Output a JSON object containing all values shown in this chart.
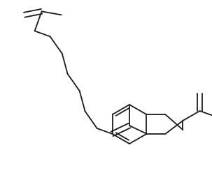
{
  "background_color": "#ffffff",
  "line_color": "#1a1a1a",
  "line_width": 1.3,
  "figsize": [
    3.03,
    2.58
  ],
  "dpi": 100
}
